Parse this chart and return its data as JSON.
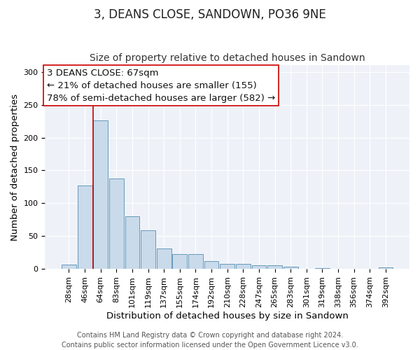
{
  "title": "3, DEANS CLOSE, SANDOWN, PO36 9NE",
  "subtitle": "Size of property relative to detached houses in Sandown",
  "xlabel": "Distribution of detached houses by size in Sandown",
  "ylabel": "Number of detached properties",
  "bar_labels": [
    "28sqm",
    "46sqm",
    "64sqm",
    "83sqm",
    "101sqm",
    "119sqm",
    "137sqm",
    "155sqm",
    "174sqm",
    "192sqm",
    "210sqm",
    "228sqm",
    "247sqm",
    "265sqm",
    "283sqm",
    "301sqm",
    "319sqm",
    "338sqm",
    "356sqm",
    "374sqm",
    "392sqm"
  ],
  "bar_values": [
    7,
    127,
    226,
    138,
    80,
    59,
    31,
    22,
    22,
    12,
    8,
    8,
    5,
    5,
    3,
    0,
    1,
    0,
    0,
    0,
    2
  ],
  "bar_color": "#c9daea",
  "bar_edge_color": "#6699bb",
  "vline_color": "#cc0000",
  "annotation_text": "3 DEANS CLOSE: 67sqm\n← 21% of detached houses are smaller (155)\n78% of semi-detached houses are larger (582) →",
  "ylim": [
    0,
    310
  ],
  "yticks": [
    0,
    50,
    100,
    150,
    200,
    250,
    300
  ],
  "footer_line1": "Contains HM Land Registry data © Crown copyright and database right 2024.",
  "footer_line2": "Contains public sector information licensed under the Open Government Licence v3.0.",
  "bg_color": "#ffffff",
  "plot_bg_color": "#eef2f8",
  "grid_color": "#ffffff",
  "title_fontsize": 12,
  "subtitle_fontsize": 10,
  "axis_label_fontsize": 9.5,
  "tick_fontsize": 8,
  "footer_fontsize": 7,
  "annotation_fontsize": 9.5
}
